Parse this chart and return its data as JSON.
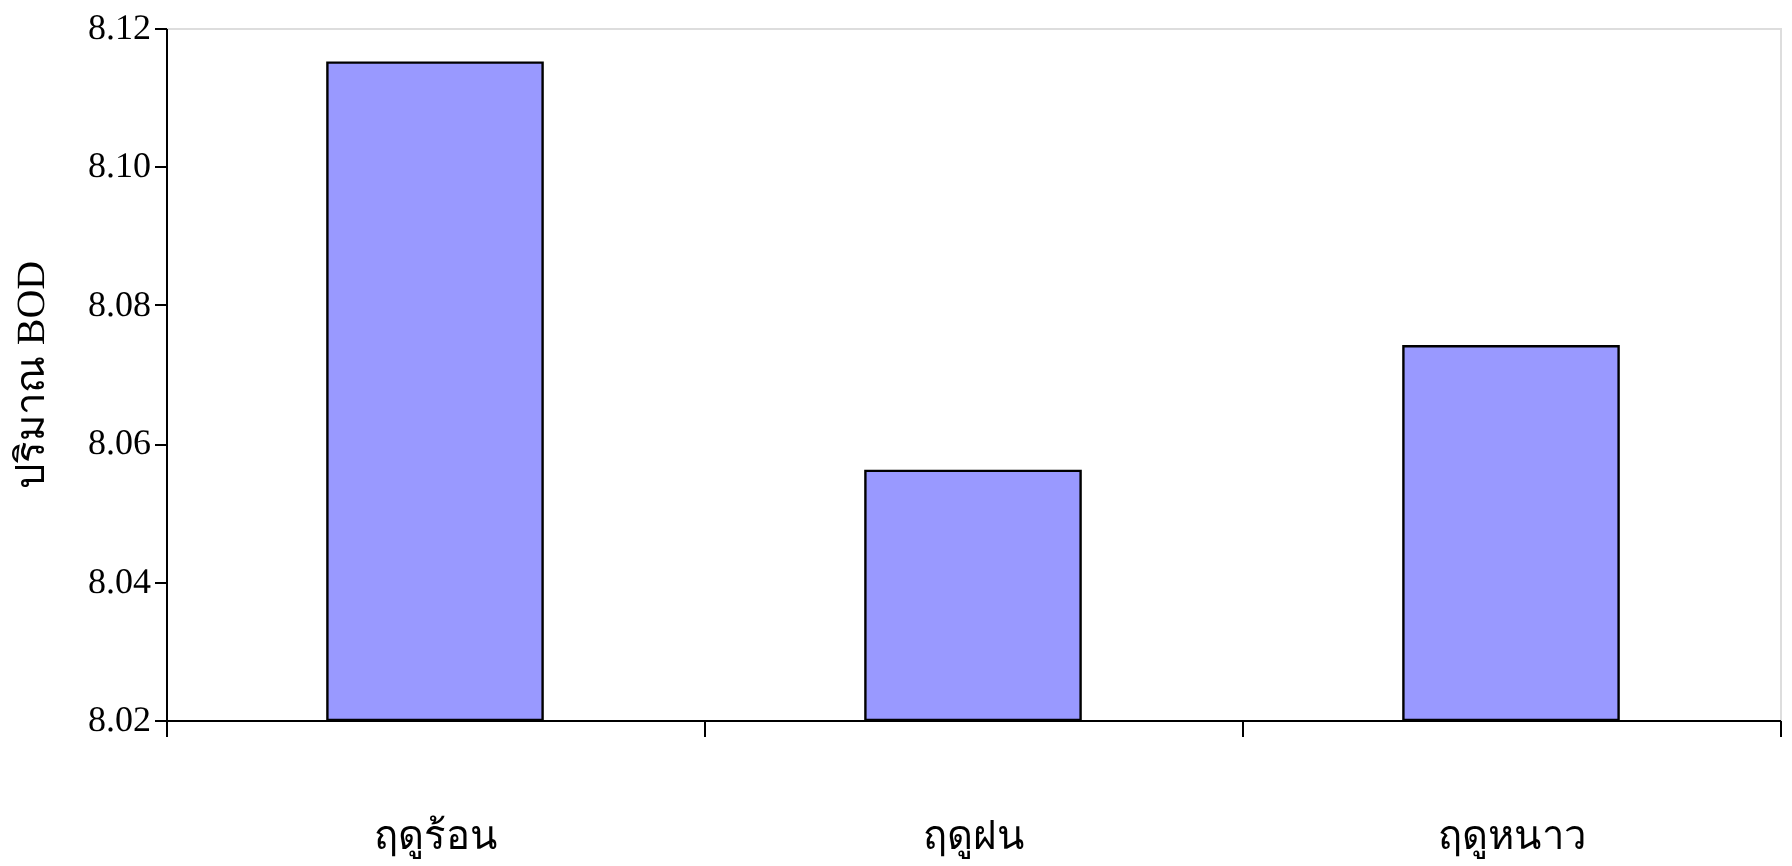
{
  "chart_data": {
    "type": "bar",
    "ylabel": "ปริมาณ BOD",
    "categories": [
      "ฤดูร้อน",
      "ฤดูฝน",
      "ฤดูหนาว"
    ],
    "values": [
      8.115,
      8.056,
      8.074
    ],
    "color": "#9999ff",
    "ylim": [
      8.02,
      8.12
    ],
    "yticks": [
      8.02,
      8.04,
      8.06,
      8.08,
      {
        "value": 8.1,
        "label": "8.10"
      },
      8.12
    ],
    "grid": false
  }
}
